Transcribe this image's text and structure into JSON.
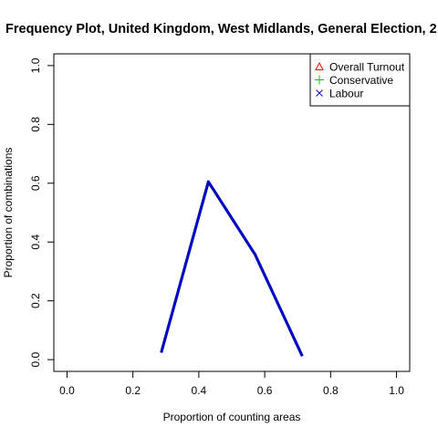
{
  "chart_data": {
    "type": "line",
    "title": "Frequency Plot, United Kingdom, West Midlands, General Election, 2",
    "xlabel": "Proportion of counting areas",
    "ylabel": "Proportion of combinations",
    "xlim": [
      -0.04,
      1.04
    ],
    "ylim": [
      -0.04,
      1.04
    ],
    "x_ticks": [
      0.0,
      0.2,
      0.4,
      0.6,
      0.8,
      1.0
    ],
    "x_tick_labels": [
      "0.0",
      "0.2",
      "0.4",
      "0.6",
      "0.8",
      "1.0"
    ],
    "y_ticks": [
      0.0,
      0.2,
      0.4,
      0.6,
      0.8,
      1.0
    ],
    "y_tick_labels": [
      "0.0",
      "0.2",
      "0.4",
      "0.6",
      "0.8",
      "1.0"
    ],
    "grid": false,
    "legend_position": "top-right",
    "series": [
      {
        "name": "Overall Turnout",
        "marker": "triangle",
        "color": "#ff0000",
        "x": [
          0.286,
          0.429,
          0.571,
          0.714
        ],
        "y": [
          0.024,
          0.605,
          0.357,
          0.012
        ]
      },
      {
        "name": "Conservative",
        "marker": "plus",
        "color": "#00cd00",
        "x": [
          0.286,
          0.429,
          0.571,
          0.714
        ],
        "y": [
          0.024,
          0.605,
          0.357,
          0.012
        ]
      },
      {
        "name": "Labour",
        "marker": "cross",
        "color": "#0000cd",
        "x": [
          0.286,
          0.429,
          0.571,
          0.714
        ],
        "y": [
          0.024,
          0.605,
          0.357,
          0.012
        ]
      }
    ]
  }
}
